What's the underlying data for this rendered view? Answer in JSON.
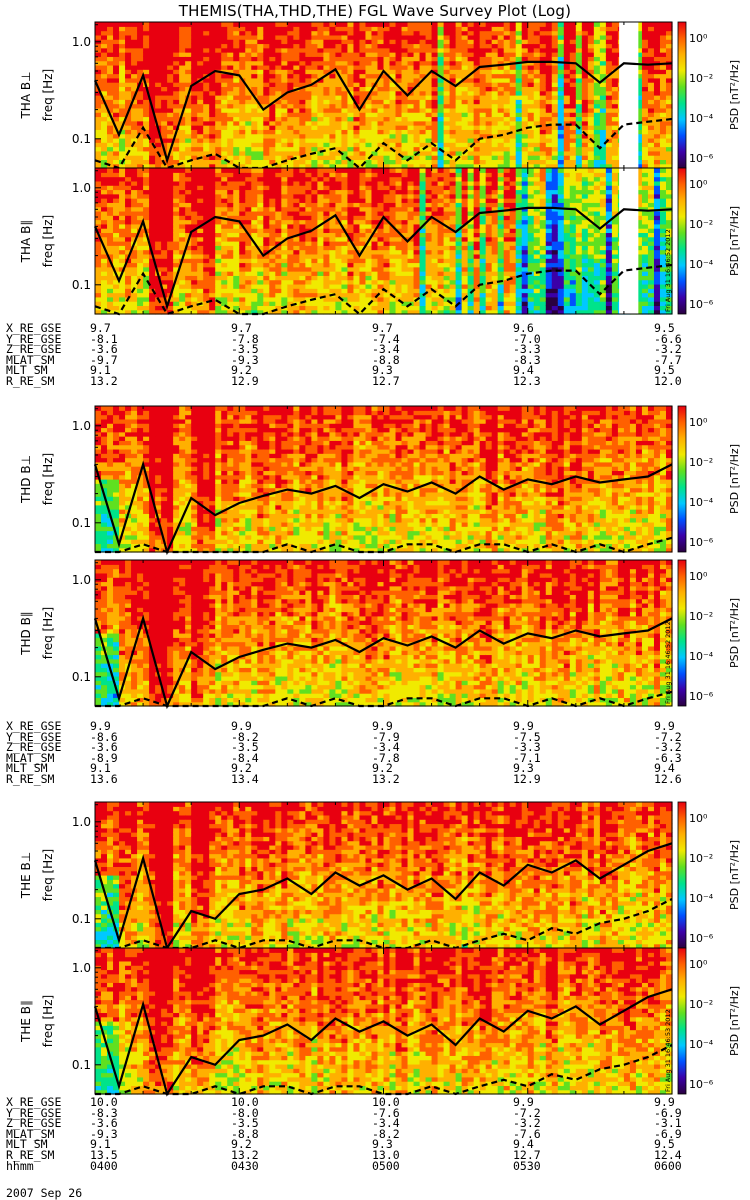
{
  "title": "THEMIS(THA,THD,THE) FGL Wave Survey Plot (Log)",
  "colors": {
    "palette": [
      "#2a0040",
      "#3b00a8",
      "#0050ff",
      "#00c8ff",
      "#00e38a",
      "#60e020",
      "#f0ea00",
      "#ffb000",
      "#ff6000",
      "#e80010"
    ],
    "line": "#000000",
    "gap": "#ffffff"
  },
  "chart_data": [
    {
      "type": "heatmap",
      "panel": "THA B⊥",
      "ylabel_probe": "THA B⊥",
      "ylabel": "freq [Hz]",
      "yscale": "log",
      "ylim": [
        0.05,
        1.6
      ],
      "yticks": [
        "1.0",
        "0.1"
      ],
      "colorbar_label": "PSD [nT²/Hz]",
      "colorbar_ticks": [
        "10⁰",
        "10⁻²",
        "10⁻⁴",
        "10⁻⁶"
      ],
      "zlim": [
        1e-07,
        10
      ],
      "xlim": [
        "0400",
        "0600"
      ],
      "data_gap": [
        "0549",
        "0553"
      ],
      "series": [
        {
          "style": "solid",
          "values": [
            0.4,
            0.11,
            0.45,
            0.06,
            0.35,
            0.5,
            0.45,
            0.2,
            0.3,
            0.36,
            0.52,
            0.2,
            0.5,
            0.28,
            0.5,
            0.35,
            0.55,
            0.58,
            0.62,
            0.62,
            0.6,
            0.38,
            0.6,
            0.58,
            0.6
          ]
        },
        {
          "style": "dashed",
          "values": [
            0.06,
            0.05,
            0.13,
            0.04,
            0.06,
            0.07,
            0.05,
            0.05,
            0.06,
            0.07,
            0.08,
            0.05,
            0.09,
            0.06,
            0.09,
            0.06,
            0.1,
            0.11,
            0.13,
            0.14,
            0.14,
            0.08,
            0.14,
            0.15,
            0.16
          ]
        }
      ]
    },
    {
      "type": "heatmap",
      "panel": "THA B∥",
      "ylabel_probe": "THA B∥",
      "ylabel": "freq [Hz]",
      "yscale": "log",
      "ylim": [
        0.05,
        1.6
      ],
      "yticks": [
        "1.0",
        "0.1"
      ],
      "colorbar_label": "PSD [nT²/Hz]",
      "colorbar_ticks": [
        "10⁰",
        "10⁻²",
        "10⁻⁴",
        "10⁻⁶"
      ],
      "zlim": [
        1e-07,
        10
      ],
      "xlim": [
        "0400",
        "0600"
      ],
      "data_gap": [
        "0549",
        "0553"
      ],
      "series": [
        {
          "style": "solid",
          "values": [
            0.4,
            0.11,
            0.45,
            0.06,
            0.35,
            0.5,
            0.45,
            0.2,
            0.3,
            0.36,
            0.52,
            0.2,
            0.5,
            0.28,
            0.5,
            0.35,
            0.55,
            0.58,
            0.62,
            0.62,
            0.6,
            0.38,
            0.6,
            0.58,
            0.6
          ]
        },
        {
          "style": "dashed",
          "values": [
            0.06,
            0.05,
            0.13,
            0.04,
            0.06,
            0.07,
            0.05,
            0.05,
            0.06,
            0.07,
            0.08,
            0.05,
            0.09,
            0.06,
            0.09,
            0.06,
            0.1,
            0.11,
            0.13,
            0.14,
            0.14,
            0.08,
            0.14,
            0.15,
            0.16
          ]
        }
      ]
    },
    {
      "type": "heatmap",
      "panel": "THD B⊥",
      "ylabel_probe": "THD B⊥",
      "ylabel": "freq [Hz]",
      "yscale": "log",
      "ylim": [
        0.05,
        1.6
      ],
      "yticks": [
        "1.0",
        "0.1"
      ],
      "colorbar_label": "PSD [nT²/Hz]",
      "colorbar_ticks": [
        "10⁰",
        "10⁻²",
        "10⁻⁴",
        "10⁻⁶"
      ],
      "zlim": [
        1e-07,
        10
      ],
      "xlim": [
        "0400",
        "0600"
      ],
      "series": [
        {
          "style": "solid",
          "values": [
            0.4,
            0.06,
            0.4,
            0.05,
            0.18,
            0.12,
            0.16,
            0.19,
            0.22,
            0.2,
            0.24,
            0.18,
            0.25,
            0.21,
            0.26,
            0.2,
            0.3,
            0.22,
            0.28,
            0.25,
            0.3,
            0.26,
            0.28,
            0.3,
            0.4
          ]
        },
        {
          "style": "dashed",
          "values": [
            0.05,
            0.04,
            0.06,
            0.04,
            0.05,
            0.05,
            0.05,
            0.05,
            0.06,
            0.05,
            0.06,
            0.05,
            0.05,
            0.06,
            0.06,
            0.05,
            0.06,
            0.06,
            0.05,
            0.06,
            0.05,
            0.06,
            0.05,
            0.06,
            0.07
          ]
        }
      ]
    },
    {
      "type": "heatmap",
      "panel": "THD B∥",
      "ylabel_probe": "THD B∥",
      "ylabel": "freq [Hz]",
      "yscale": "log",
      "ylim": [
        0.05,
        1.6
      ],
      "yticks": [
        "1.0",
        "0.1"
      ],
      "colorbar_label": "PSD [nT²/Hz]",
      "colorbar_ticks": [
        "10⁰",
        "10⁻²",
        "10⁻⁴",
        "10⁻⁶"
      ],
      "zlim": [
        1e-07,
        10
      ],
      "xlim": [
        "0400",
        "0600"
      ],
      "series": [
        {
          "style": "solid",
          "values": [
            0.4,
            0.06,
            0.4,
            0.05,
            0.18,
            0.12,
            0.16,
            0.19,
            0.22,
            0.2,
            0.24,
            0.18,
            0.25,
            0.21,
            0.26,
            0.2,
            0.3,
            0.22,
            0.28,
            0.25,
            0.3,
            0.26,
            0.28,
            0.3,
            0.4
          ]
        },
        {
          "style": "dashed",
          "values": [
            0.05,
            0.04,
            0.06,
            0.04,
            0.05,
            0.05,
            0.05,
            0.05,
            0.06,
            0.05,
            0.06,
            0.05,
            0.05,
            0.06,
            0.06,
            0.05,
            0.06,
            0.06,
            0.05,
            0.06,
            0.05,
            0.06,
            0.05,
            0.06,
            0.07
          ]
        }
      ]
    },
    {
      "type": "heatmap",
      "panel": "THE B⊥",
      "ylabel_probe": "THE B⊥",
      "ylabel": "freq [Hz]",
      "yscale": "log",
      "ylim": [
        0.05,
        1.6
      ],
      "yticks": [
        "1.0",
        "0.1"
      ],
      "colorbar_label": "PSD [nT²/Hz]",
      "colorbar_ticks": [
        "10⁰",
        "10⁻²",
        "10⁻⁴",
        "10⁻⁶"
      ],
      "zlim": [
        1e-07,
        10
      ],
      "xlim": [
        "0400",
        "0600"
      ],
      "series": [
        {
          "style": "solid",
          "values": [
            0.4,
            0.06,
            0.42,
            0.05,
            0.12,
            0.1,
            0.18,
            0.2,
            0.26,
            0.18,
            0.3,
            0.22,
            0.28,
            0.2,
            0.26,
            0.16,
            0.3,
            0.22,
            0.36,
            0.3,
            0.4,
            0.26,
            0.36,
            0.5,
            0.6
          ]
        },
        {
          "style": "dashed",
          "values": [
            0.05,
            0.04,
            0.06,
            0.04,
            0.05,
            0.06,
            0.05,
            0.06,
            0.06,
            0.05,
            0.06,
            0.06,
            0.05,
            0.05,
            0.06,
            0.05,
            0.06,
            0.07,
            0.06,
            0.08,
            0.07,
            0.09,
            0.1,
            0.12,
            0.16
          ]
        }
      ]
    },
    {
      "type": "heatmap",
      "panel": "THE B∥",
      "ylabel_probe": "THE B∥",
      "ylabel": "freq [Hz]",
      "yscale": "log",
      "ylim": [
        0.05,
        1.6
      ],
      "yticks": [
        "1.0",
        "0.1"
      ],
      "colorbar_label": "PSD [nT²/Hz]",
      "colorbar_ticks": [
        "10⁰",
        "10⁻²",
        "10⁻⁴",
        "10⁻⁶"
      ],
      "zlim": [
        1e-07,
        10
      ],
      "xlim": [
        "0400",
        "0600"
      ],
      "series": [
        {
          "style": "solid",
          "values": [
            0.4,
            0.06,
            0.42,
            0.05,
            0.12,
            0.1,
            0.18,
            0.2,
            0.26,
            0.18,
            0.3,
            0.22,
            0.28,
            0.2,
            0.26,
            0.16,
            0.3,
            0.22,
            0.36,
            0.3,
            0.4,
            0.26,
            0.36,
            0.5,
            0.6
          ]
        },
        {
          "style": "dashed",
          "values": [
            0.05,
            0.04,
            0.06,
            0.04,
            0.05,
            0.06,
            0.05,
            0.06,
            0.06,
            0.05,
            0.06,
            0.06,
            0.05,
            0.05,
            0.06,
            0.05,
            0.06,
            0.07,
            0.06,
            0.08,
            0.07,
            0.09,
            0.1,
            0.12,
            0.16
          ]
        }
      ]
    }
  ],
  "stamps": [
    "Fri Aug 31 16:46:52 2012",
    "Fri Aug 31 16:46:52 2012",
    "Fri Aug 31 16:46:53 2012"
  ],
  "ephemeris": [
    {
      "rows": [
        {
          "label": "X_RE_GSE",
          "values": [
            "9.7",
            "9.7",
            "9.7",
            "9.6",
            "9.5"
          ]
        },
        {
          "label": "Y_RE_GSE",
          "values": [
            "-8.1",
            "-7.8",
            "-7.4",
            "-7.0",
            "-6.6"
          ]
        },
        {
          "label": "Z_RE_GSE",
          "values": [
            "-3.6",
            "-3.5",
            "-3.4",
            "-3.3",
            "-3.2"
          ]
        },
        {
          "label": "MLAT_SM",
          "values": [
            "-9.7",
            "-9.3",
            "-8.8",
            "-8.3",
            "-7.7"
          ]
        },
        {
          "label": "MLT_SM",
          "values": [
            "9.1",
            "9.2",
            "9.3",
            "9.4",
            "9.5"
          ]
        },
        {
          "label": "R_RE_SM",
          "values": [
            "13.2",
            "12.9",
            "12.7",
            "12.3",
            "12.0"
          ]
        }
      ]
    },
    {
      "rows": [
        {
          "label": "X_RE_GSE",
          "values": [
            "9.9",
            "9.9",
            "9.9",
            "9.9",
            "9.9"
          ]
        },
        {
          "label": "Y_RE_GSE",
          "values": [
            "-8.6",
            "-8.2",
            "-7.9",
            "-7.5",
            "-7.2"
          ]
        },
        {
          "label": "Z_RE_GSE",
          "values": [
            "-3.6",
            "-3.5",
            "-3.4",
            "-3.3",
            "-3.2"
          ]
        },
        {
          "label": "MLAT_SM",
          "values": [
            "-8.9",
            "-8.4",
            "-7.8",
            "-7.1",
            "-6.3"
          ]
        },
        {
          "label": "MLT_SM",
          "values": [
            "9.1",
            "9.2",
            "9.2",
            "9.3",
            "9.4"
          ]
        },
        {
          "label": "R_RE_SM",
          "values": [
            "13.6",
            "13.4",
            "13.2",
            "12.9",
            "12.6"
          ]
        }
      ]
    },
    {
      "rows": [
        {
          "label": "X_RE_GSE",
          "values": [
            "10.0",
            "10.0",
            "10.0",
            "9.9",
            "9.9"
          ]
        },
        {
          "label": "Y_RE_GSE",
          "values": [
            "-8.3",
            "-8.0",
            "-7.6",
            "-7.2",
            "-6.9"
          ]
        },
        {
          "label": "Z_RE_GSE",
          "values": [
            "-3.6",
            "-3.5",
            "-3.4",
            "-3.2",
            "-3.1"
          ]
        },
        {
          "label": "MLAT_SM",
          "values": [
            "-9.3",
            "-8.8",
            "-8.2",
            "-7.6",
            "-6.9"
          ]
        },
        {
          "label": "MLT_SM",
          "values": [
            "9.1",
            "9.2",
            "9.3",
            "9.4",
            "9.5"
          ]
        },
        {
          "label": "R_RE_SM",
          "values": [
            "13.5",
            "13.2",
            "13.0",
            "12.7",
            "12.4"
          ]
        },
        {
          "label": "hhmm",
          "values": [
            "0400",
            "0430",
            "0500",
            "0530",
            "0600"
          ]
        }
      ]
    }
  ],
  "date_label": "2007 Sep 26"
}
